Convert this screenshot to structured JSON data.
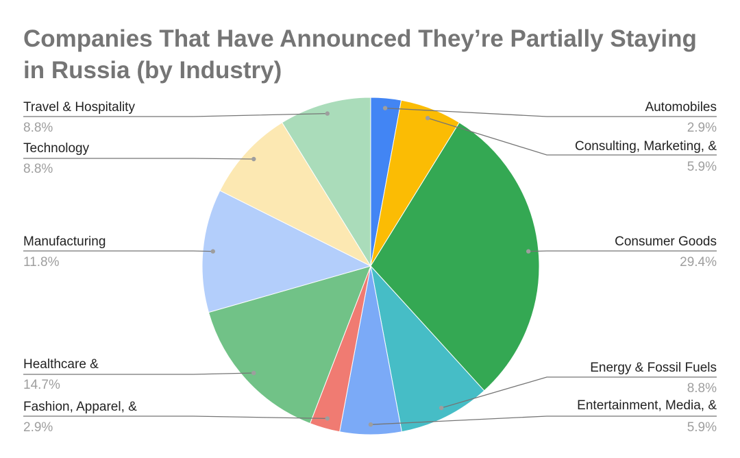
{
  "chart_data": {
    "type": "pie",
    "title": "Companies That Have Announced They’re Partially Staying in Russia (by Industry)",
    "slices": [
      {
        "label": "Automobiles",
        "value": 2.9,
        "value_label": "2.9%",
        "color": "#4285f4"
      },
      {
        "label": "Consulting, Marketing, &",
        "value": 5.9,
        "value_label": "5.9%",
        "color": "#fbbc04"
      },
      {
        "label": "Consumer Goods",
        "value": 29.4,
        "value_label": "29.4%",
        "color": "#34a853"
      },
      {
        "label": "Energy & Fossil Fuels",
        "value": 8.8,
        "value_label": "8.8%",
        "color": "#46bdc6"
      },
      {
        "label": "Entertainment, Media, &",
        "value": 5.9,
        "value_label": "5.9%",
        "color": "#7baaf7"
      },
      {
        "label": "Fashion, Apparel, &",
        "value": 2.9,
        "value_label": "2.9%",
        "color": "#f07b72"
      },
      {
        "label": "Healthcare &",
        "value": 14.7,
        "value_label": "14.7%",
        "color": "#71c287"
      },
      {
        "label": "Manufacturing",
        "value": 11.8,
        "value_label": "11.8%",
        "color": "#b3cefb"
      },
      {
        "label": "Technology",
        "value": 8.8,
        "value_label": "8.8%",
        "color": "#fce8b2"
      },
      {
        "label": "Travel & Hospitality",
        "value": 8.8,
        "value_label": "8.8%",
        "color": "#aadcba"
      }
    ],
    "legend": "none",
    "labels_position": "outside-with-leader-lines",
    "colors": {
      "title": "#757575",
      "label": "#222222",
      "value": "#9e9e9e",
      "leader": "#757575"
    }
  }
}
